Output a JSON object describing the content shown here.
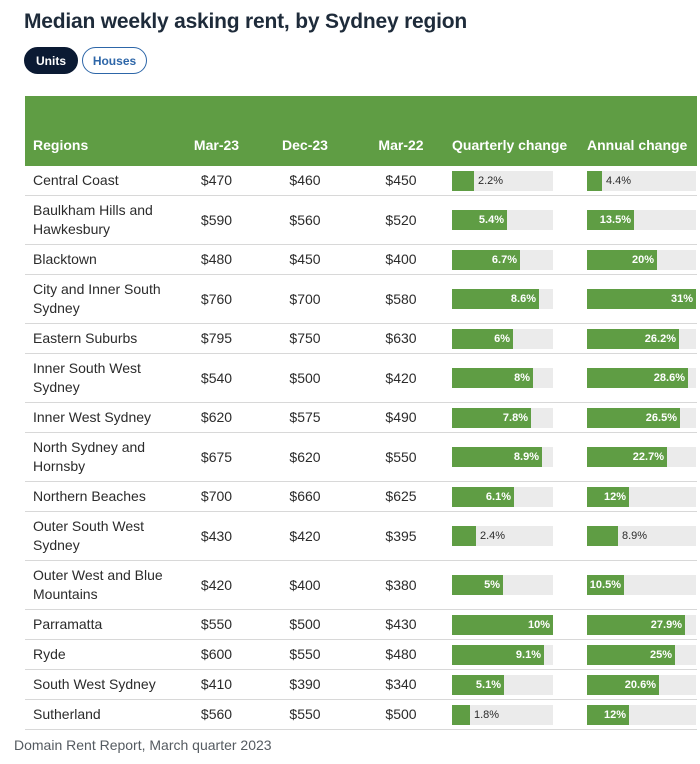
{
  "title": "Median weekly asking rent, by Sydney region",
  "toggles": {
    "units": "Units",
    "houses": "Houses"
  },
  "source": "Domain Rent Report, March quarter 2023",
  "colors": {
    "bar": "#5f9d44",
    "header": "#5f9d44",
    "track": "#ebebeb",
    "active_toggle": "#0b1a33",
    "inactive_toggle_border": "#2d66a8"
  },
  "chart_data": {
    "type": "table",
    "title": "Median weekly asking rent, by Sydney region",
    "columns": [
      "Regions",
      "Mar-23",
      "Dec-23",
      "Mar-22",
      "Quarterly change",
      "Annual change"
    ],
    "quarterly_max": 10,
    "annual_max": 31,
    "rows": [
      {
        "region": "Central Coast",
        "mar23": "$470",
        "dec23": "$460",
        "mar22": "$450",
        "quarterly": 2.2,
        "annual": 4.4
      },
      {
        "region": "Baulkham Hills and Hawkesbury",
        "mar23": "$590",
        "dec23": "$560",
        "mar22": "$520",
        "quarterly": 5.4,
        "annual": 13.5
      },
      {
        "region": "Blacktown",
        "mar23": "$480",
        "dec23": "$450",
        "mar22": "$400",
        "quarterly": 6.7,
        "annual": 20
      },
      {
        "region": "City and Inner South Sydney",
        "mar23": "$760",
        "dec23": "$700",
        "mar22": "$580",
        "quarterly": 8.6,
        "annual": 31
      },
      {
        "region": "Eastern Suburbs",
        "mar23": "$795",
        "dec23": "$750",
        "mar22": "$630",
        "quarterly": 6,
        "annual": 26.2
      },
      {
        "region": "Inner South West Sydney",
        "mar23": "$540",
        "dec23": "$500",
        "mar22": "$420",
        "quarterly": 8,
        "annual": 28.6
      },
      {
        "region": "Inner West Sydney",
        "mar23": "$620",
        "dec23": "$575",
        "mar22": "$490",
        "quarterly": 7.8,
        "annual": 26.5
      },
      {
        "region": "North Sydney and Hornsby",
        "mar23": "$675",
        "dec23": "$620",
        "mar22": "$550",
        "quarterly": 8.9,
        "annual": 22.7
      },
      {
        "region": "Northern Beaches",
        "mar23": "$700",
        "dec23": "$660",
        "mar22": "$625",
        "quarterly": 6.1,
        "annual": 12
      },
      {
        "region": "Outer South West Sydney",
        "mar23": "$430",
        "dec23": "$420",
        "mar22": "$395",
        "quarterly": 2.4,
        "annual": 8.9
      },
      {
        "region": "Outer West and Blue Mountains",
        "mar23": "$420",
        "dec23": "$400",
        "mar22": "$380",
        "quarterly": 5,
        "annual": 10.5
      },
      {
        "region": "Parramatta",
        "mar23": "$550",
        "dec23": "$500",
        "mar22": "$430",
        "quarterly": 10,
        "annual": 27.9
      },
      {
        "region": "Ryde",
        "mar23": "$600",
        "dec23": "$550",
        "mar22": "$480",
        "quarterly": 9.1,
        "annual": 25
      },
      {
        "region": "South West Sydney",
        "mar23": "$410",
        "dec23": "$390",
        "mar22": "$340",
        "quarterly": 5.1,
        "annual": 20.6
      },
      {
        "region": "Sutherland",
        "mar23": "$560",
        "dec23": "$550",
        "mar22": "$500",
        "quarterly": 1.8,
        "annual": 12
      }
    ]
  }
}
